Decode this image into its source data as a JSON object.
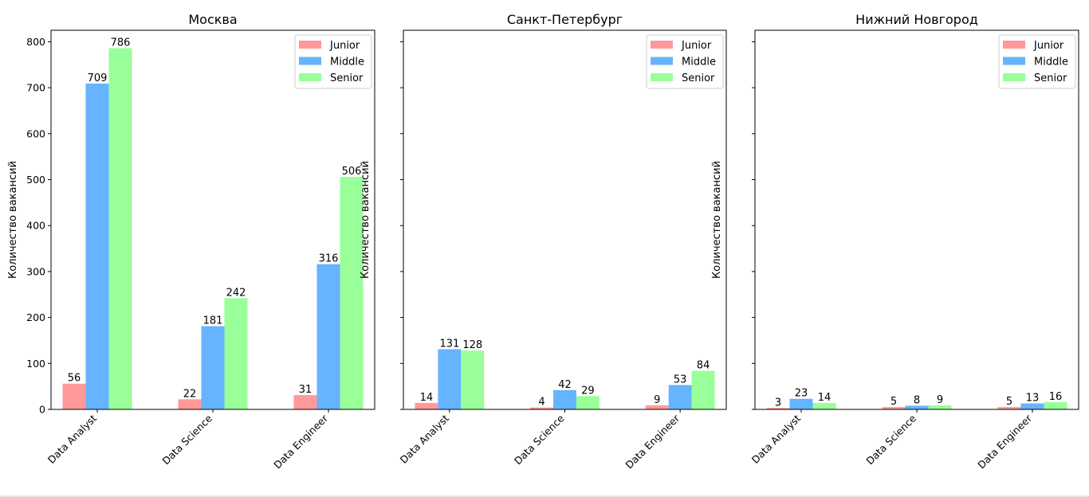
{
  "chart_data": [
    {
      "type": "bar",
      "title": "Москва",
      "ylabel": "Количество вакансий",
      "xlabel": "",
      "categories": [
        "Data Analyst",
        "Data Science",
        "Data Engineer"
      ],
      "yticks": [
        0,
        100,
        200,
        300,
        400,
        500,
        600,
        700,
        800
      ],
      "show_ytick_labels": true,
      "ylim": [
        0,
        825
      ],
      "series": [
        {
          "name": "Junior",
          "values": [
            56,
            22,
            31
          ]
        },
        {
          "name": "Middle",
          "values": [
            709,
            181,
            316
          ]
        },
        {
          "name": "Senior",
          "values": [
            786,
            242,
            506
          ]
        }
      ],
      "legend": "top-right",
      "grid": false
    },
    {
      "type": "bar",
      "title": "Санкт-Петербург",
      "ylabel": "Количество вакансий",
      "xlabel": "",
      "categories": [
        "Data Analyst",
        "Data Science",
        "Data Engineer"
      ],
      "yticks": [
        0,
        100,
        200,
        300,
        400,
        500,
        600,
        700,
        800
      ],
      "show_ytick_labels": false,
      "ylim": [
        0,
        825
      ],
      "series": [
        {
          "name": "Junior",
          "values": [
            14,
            4,
            9
          ]
        },
        {
          "name": "Middle",
          "values": [
            131,
            42,
            53
          ]
        },
        {
          "name": "Senior",
          "values": [
            128,
            29,
            84
          ]
        }
      ],
      "legend": "top-right",
      "grid": false
    },
    {
      "type": "bar",
      "title": "Нижний Новгород",
      "ylabel": "Количество вакансий",
      "xlabel": "",
      "categories": [
        "Data Analyst",
        "Data Science",
        "Data Engineer"
      ],
      "yticks": [
        0,
        100,
        200,
        300,
        400,
        500,
        600,
        700,
        800
      ],
      "show_ytick_labels": false,
      "ylim": [
        0,
        825
      ],
      "series": [
        {
          "name": "Junior",
          "values": [
            3,
            5,
            5
          ]
        },
        {
          "name": "Middle",
          "values": [
            23,
            8,
            13
          ]
        },
        {
          "name": "Senior",
          "values": [
            14,
            9,
            16
          ]
        }
      ],
      "legend": "top-right",
      "grid": false
    }
  ],
  "colors": {
    "Junior": "#ff9999",
    "Middle": "#66b3ff",
    "Senior": "#99ff99"
  }
}
